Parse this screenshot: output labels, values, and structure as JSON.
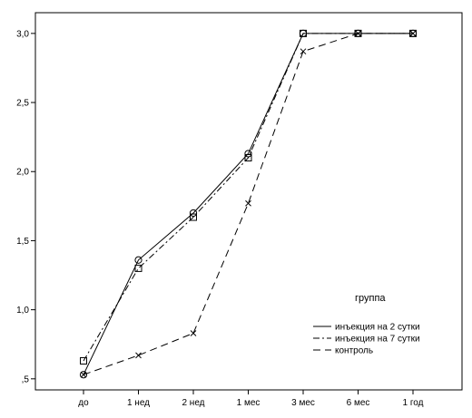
{
  "chart_data": {
    "type": "line",
    "title": "",
    "xlabel": "",
    "ylabel": "",
    "categories": [
      "до",
      "1 нед",
      "2 нед",
      "1 мес",
      "3 мес",
      "6 мес",
      "1 год"
    ],
    "y_ticks": [
      {
        "value": 0.5,
        "label": ",5"
      },
      {
        "value": 1.0,
        "label": "1,0"
      },
      {
        "value": 1.5,
        "label": "1,5"
      },
      {
        "value": 2.0,
        "label": "2,0"
      },
      {
        "value": 2.5,
        "label": "2,5"
      },
      {
        "value": 3.0,
        "label": "3,0"
      }
    ],
    "ylim": [
      0.42,
      3.15
    ],
    "grid": false,
    "legend": {
      "title": "группа",
      "placement": "bottom-right",
      "entries": [
        "инъекция на 2 сутки",
        "инъекция на 7 сутки",
        "контроль"
      ]
    },
    "series": [
      {
        "name": "инъекция на 2 сутки",
        "values": [
          0.53,
          1.36,
          1.7,
          2.13,
          3.0,
          3.0,
          3.0
        ],
        "marker": "circle",
        "dash": "solid"
      },
      {
        "name": "инъекция на 7 сутки",
        "values": [
          0.63,
          1.3,
          1.67,
          2.1,
          3.0,
          3.0,
          3.0
        ],
        "marker": "square",
        "dash": "dashdot"
      },
      {
        "name": "контроль",
        "values": [
          0.53,
          0.67,
          0.83,
          1.77,
          2.87,
          3.0,
          3.0
        ],
        "marker": "x",
        "dash": "dashed"
      }
    ]
  }
}
